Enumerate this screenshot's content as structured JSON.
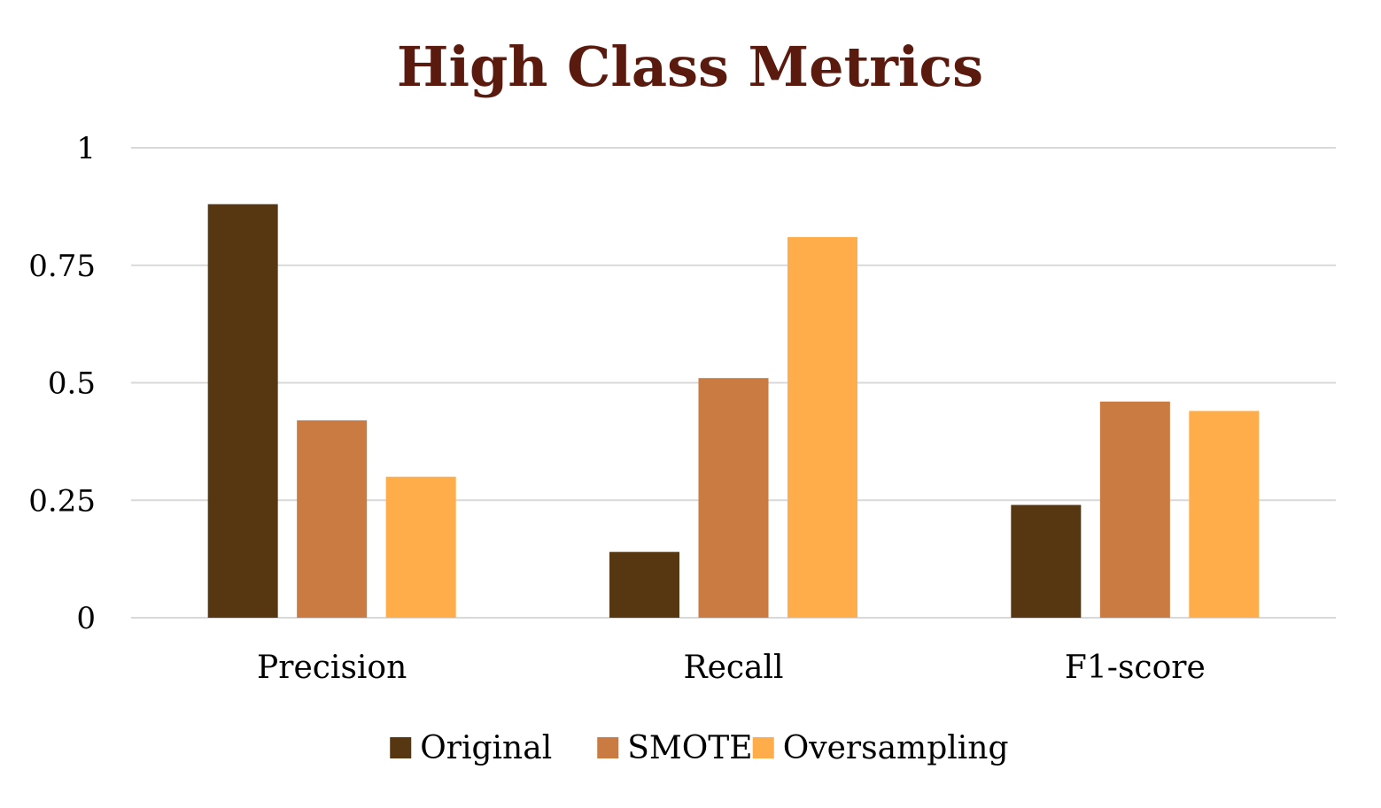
{
  "chart_data": {
    "type": "bar",
    "title": "High Class Metrics",
    "categories": [
      "Precision",
      "Recall",
      "F1-score"
    ],
    "series": [
      {
        "name": "Original",
        "values": [
          0.88,
          0.14,
          0.24
        ],
        "color": "#563711"
      },
      {
        "name": "SMOTE",
        "values": [
          0.42,
          0.51,
          0.46
        ],
        "color": "#C97B42"
      },
      {
        "name": "Oversampling",
        "values": [
          0.3,
          0.81,
          0.44
        ],
        "color": "#FFAD4A"
      }
    ],
    "ylim": [
      0,
      1
    ],
    "yticks": [
      0,
      0.25,
      0.5,
      0.75,
      1
    ],
    "ytick_labels": [
      "0",
      "0.25",
      "0.5",
      "0.75",
      "1"
    ],
    "xlabel": "",
    "ylabel": "",
    "grid": true,
    "legend_position": "bottom",
    "colors": {
      "title": "#5B1A0E",
      "gridline": "#D9D9D9",
      "text": "#000000"
    }
  }
}
